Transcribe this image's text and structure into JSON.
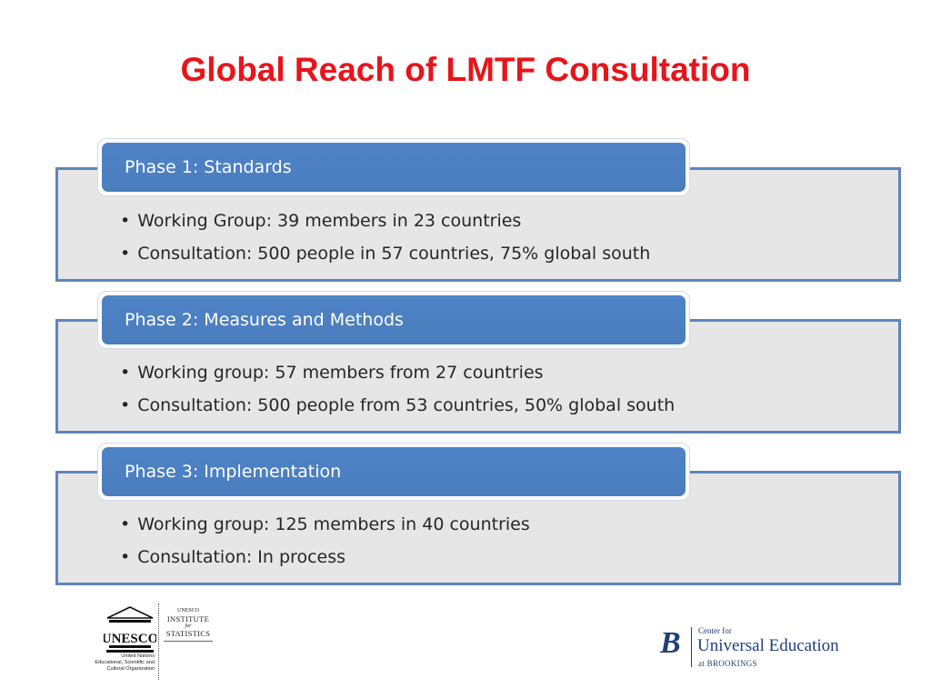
{
  "title": "Global Reach of LMTF Consultation",
  "phases": [
    {
      "header": "Phase 1: Standards",
      "bullets": [
        "Working Group: 39 members in 23 countries",
        "Consultation: 500 people in 57 countries, 75% global south"
      ]
    },
    {
      "header": "Phase 2: Measures and Methods",
      "bullets": [
        "Working group: 57 members from 27 countries",
        "Consultation: 500 people from 53 countries, 50% global south"
      ]
    },
    {
      "header": "Phase 3: Implementation",
      "bullets": [
        "Working group: 125 members in  40 countries",
        "Consultation: In process"
      ]
    }
  ],
  "logos": {
    "unesco": {
      "wordmark": "UNESCO",
      "org_lines": [
        "United Nations",
        "Educational, Scientific and",
        "Cultural Organization"
      ],
      "uis_lines": [
        "UNESCO",
        "INSTITUTE",
        "for",
        "STATISTICS"
      ]
    },
    "brookings": {
      "mark": "B",
      "center_for": "Center for",
      "name": "Universal Education",
      "at": "at BROOKINGS"
    }
  },
  "colors": {
    "title": "#e8141b",
    "header_fill": "#4e83c6",
    "box_border": "#5e85bd",
    "box_fill": "#e6e6e6"
  }
}
